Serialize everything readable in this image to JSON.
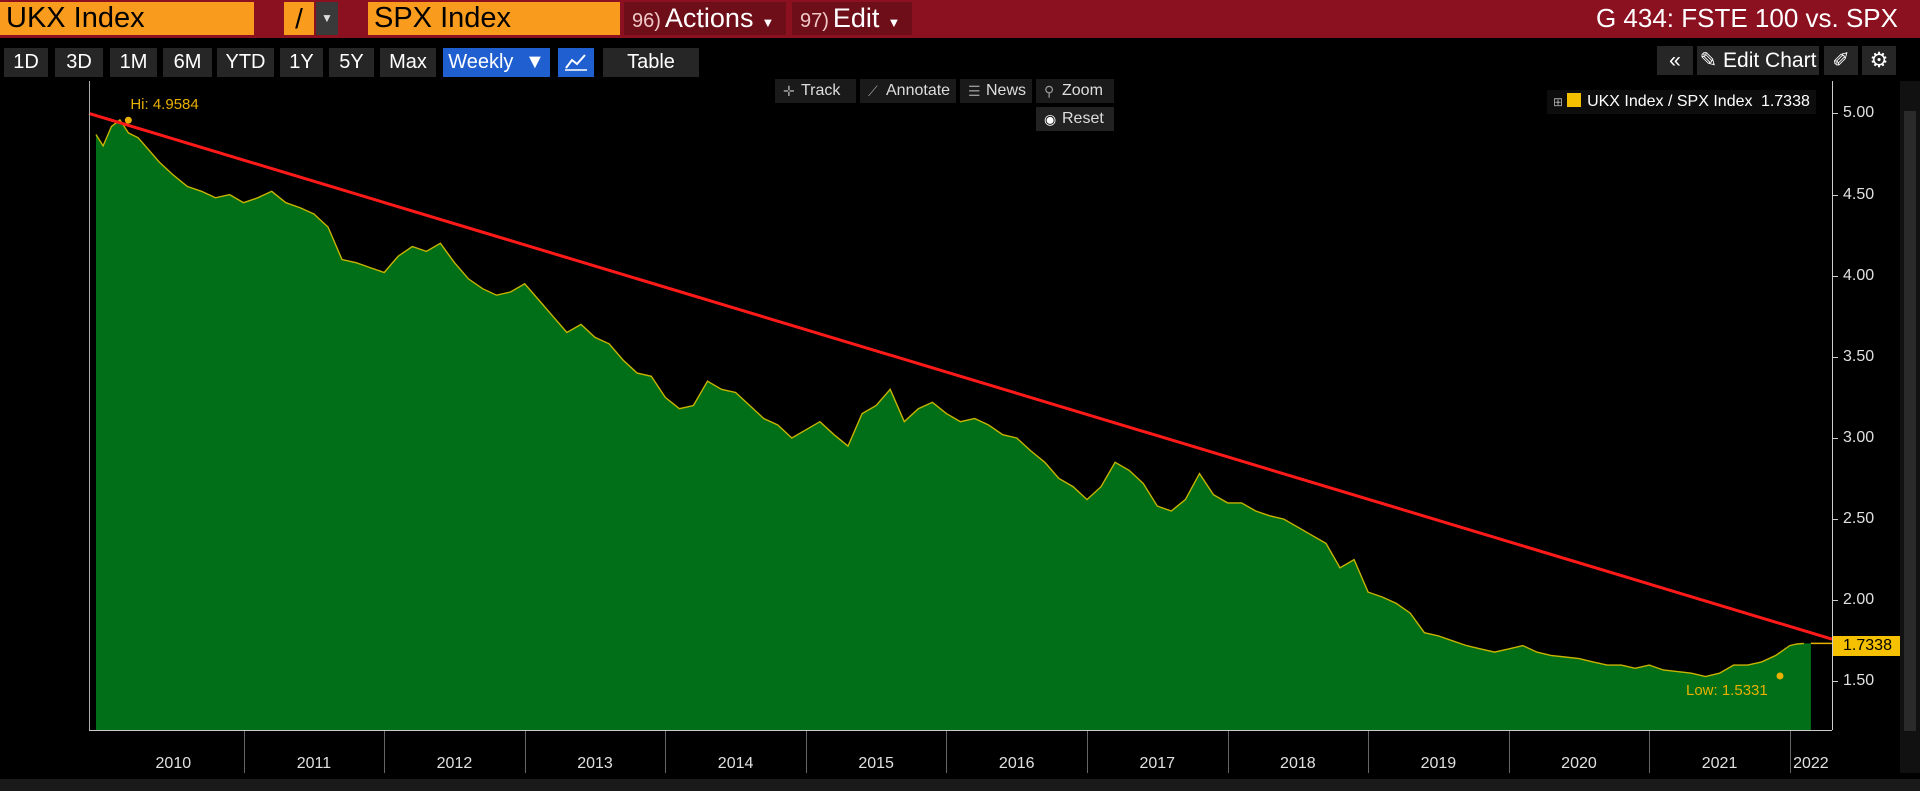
{
  "header": {
    "security1": "UKX Index",
    "operator": "/",
    "security2": "SPX Index",
    "actions_num": "96)",
    "actions_label": "Actions",
    "edit_num": "97)",
    "edit_label": "Edit",
    "title": "G 434: FSTE 100 vs. SPX"
  },
  "colors": {
    "header_bg": "#8b1120",
    "input_bg": "#f99b1c",
    "area_fill": "#006f17",
    "area_line": "#c8b400",
    "trendline": "#ff1a1a",
    "accent_blue": "#1f5fd0",
    "annotation": "#e8b000"
  },
  "toolbar": {
    "ranges": [
      "1D",
      "3D",
      "1M",
      "6M",
      "YTD",
      "1Y",
      "5Y",
      "Max"
    ],
    "frequency": "Weekly",
    "table_label": "Table",
    "edit_chart_label": "Edit Chart"
  },
  "plot_controls": {
    "track": "Track",
    "annotate": "Annotate",
    "news": "News",
    "zoom": "Zoom",
    "reset": "Reset"
  },
  "chart_data": {
    "type": "area",
    "title": "",
    "xlabel": "",
    "ylabel": "",
    "ylim": [
      1.2,
      5.2
    ],
    "yticks": [
      1.5,
      2.0,
      2.5,
      3.0,
      3.5,
      4.0,
      4.5,
      5.0
    ],
    "ytick_labels": [
      "1.50",
      "2.00",
      "2.50",
      "3.00",
      "3.50",
      "4.00",
      "4.50",
      "5.00"
    ],
    "xlim": [
      2009.9,
      2022.3
    ],
    "year_labels": [
      "2010",
      "2011",
      "2012",
      "2013",
      "2014",
      "2015",
      "2016",
      "2017",
      "2018",
      "2019",
      "2020",
      "2021",
      "2022"
    ],
    "legend": "top-right",
    "grid": false,
    "series": [
      {
        "name": "UKX Index / SPX Index",
        "last_value_label": "1.7338",
        "x": [
          2009.95,
          2010.0,
          2010.06,
          2010.12,
          2010.18,
          2010.25,
          2010.32,
          2010.4,
          2010.5,
          2010.6,
          2010.7,
          2010.8,
          2010.9,
          2011.0,
          2011.1,
          2011.2,
          2011.3,
          2011.4,
          2011.5,
          2011.6,
          2011.7,
          2011.8,
          2011.9,
          2012.0,
          2012.1,
          2012.2,
          2012.3,
          2012.4,
          2012.5,
          2012.6,
          2012.7,
          2012.8,
          2012.9,
          2013.0,
          2013.1,
          2013.2,
          2013.3,
          2013.4,
          2013.5,
          2013.6,
          2013.7,
          2013.8,
          2013.9,
          2014.0,
          2014.1,
          2014.2,
          2014.3,
          2014.4,
          2014.5,
          2014.6,
          2014.7,
          2014.8,
          2014.9,
          2015.0,
          2015.1,
          2015.2,
          2015.3,
          2015.4,
          2015.5,
          2015.6,
          2015.7,
          2015.8,
          2015.9,
          2016.0,
          2016.1,
          2016.2,
          2016.3,
          2016.4,
          2016.5,
          2016.6,
          2016.7,
          2016.8,
          2016.9,
          2017.0,
          2017.1,
          2017.2,
          2017.3,
          2017.4,
          2017.5,
          2017.6,
          2017.7,
          2017.8,
          2017.9,
          2018.0,
          2018.1,
          2018.2,
          2018.3,
          2018.4,
          2018.5,
          2018.6,
          2018.7,
          2018.8,
          2018.9,
          2019.0,
          2019.1,
          2019.2,
          2019.3,
          2019.4,
          2019.5,
          2019.6,
          2019.7,
          2019.8,
          2019.9,
          2020.0,
          2020.1,
          2020.2,
          2020.3,
          2020.4,
          2020.5,
          2020.6,
          2020.7,
          2020.8,
          2020.9,
          2021.0,
          2021.1,
          2021.2,
          2021.3,
          2021.4,
          2021.5,
          2021.6,
          2021.7,
          2021.8,
          2021.9,
          2022.0,
          2022.05,
          2022.1
        ],
        "values": [
          4.87,
          4.8,
          4.92,
          4.96,
          4.88,
          4.85,
          4.78,
          4.7,
          4.62,
          4.55,
          4.52,
          4.48,
          4.5,
          4.45,
          4.48,
          4.52,
          4.45,
          4.42,
          4.38,
          4.3,
          4.1,
          4.08,
          4.05,
          4.02,
          4.12,
          4.18,
          4.15,
          4.2,
          4.08,
          3.98,
          3.92,
          3.88,
          3.9,
          3.95,
          3.85,
          3.75,
          3.65,
          3.7,
          3.62,
          3.58,
          3.48,
          3.4,
          3.38,
          3.25,
          3.18,
          3.2,
          3.35,
          3.3,
          3.28,
          3.2,
          3.12,
          3.08,
          3.0,
          3.05,
          3.1,
          3.02,
          2.95,
          3.15,
          3.2,
          3.3,
          3.1,
          3.18,
          3.22,
          3.15,
          3.1,
          3.12,
          3.08,
          3.02,
          3.0,
          2.92,
          2.85,
          2.75,
          2.7,
          2.62,
          2.7,
          2.85,
          2.8,
          2.72,
          2.58,
          2.55,
          2.62,
          2.78,
          2.65,
          2.6,
          2.6,
          2.55,
          2.52,
          2.5,
          2.45,
          2.4,
          2.35,
          2.2,
          2.25,
          2.05,
          2.02,
          1.98,
          1.92,
          1.8,
          1.78,
          1.75,
          1.72,
          1.7,
          1.68,
          1.7,
          1.72,
          1.68,
          1.66,
          1.65,
          1.64,
          1.62,
          1.6,
          1.6,
          1.58,
          1.6,
          1.57,
          1.56,
          1.55,
          1.53,
          1.55,
          1.6,
          1.6,
          1.62,
          1.66,
          1.72,
          1.73,
          1.7338
        ]
      }
    ],
    "trendline": {
      "x": [
        2009.9,
        2022.3
      ],
      "y": [
        5.0,
        1.76
      ]
    },
    "annotations": {
      "hi_label": "Hi: 4.9584",
      "hi_x": 2010.18,
      "hi_y": 4.9584,
      "low_label": "Low: 1.5331",
      "low_x": 2021.93,
      "low_y": 1.5331
    }
  }
}
